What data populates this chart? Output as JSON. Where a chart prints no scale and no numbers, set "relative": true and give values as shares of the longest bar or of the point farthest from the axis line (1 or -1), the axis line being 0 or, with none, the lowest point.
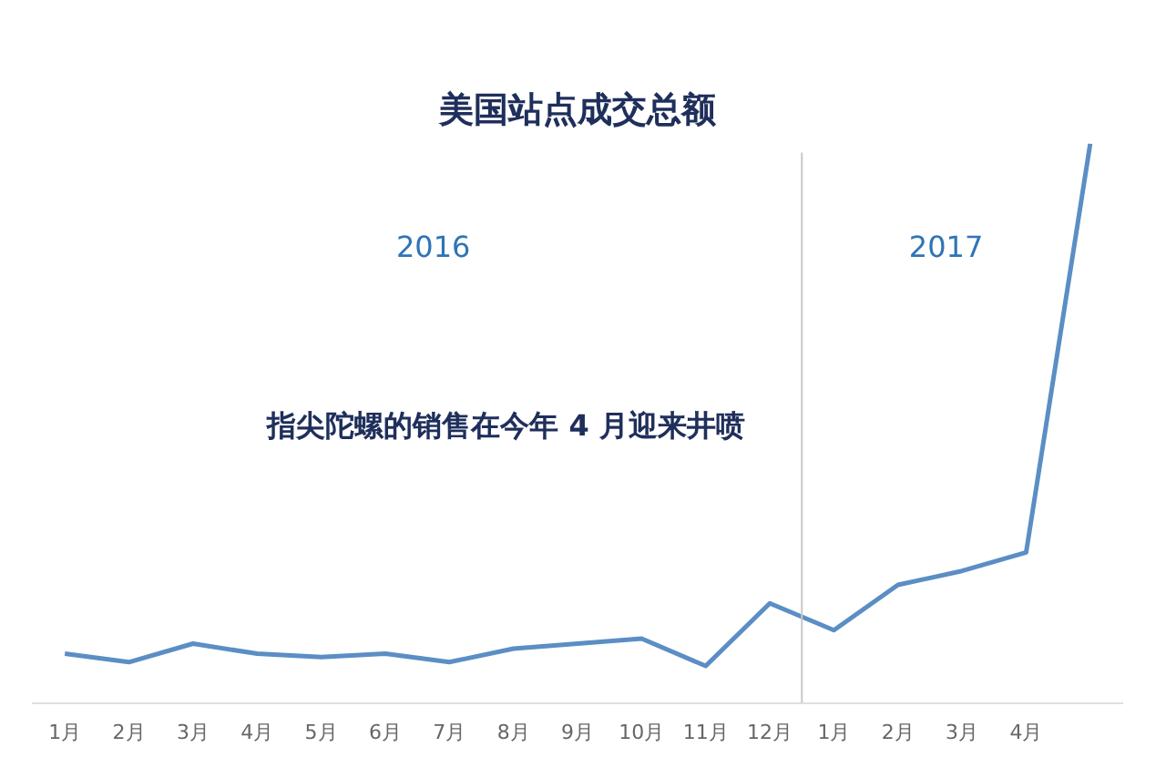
{
  "chart_data": {
    "type": "line",
    "title": "美国站点成交总额",
    "relative": true,
    "categories": [
      "1月",
      "2月",
      "3月",
      "4月",
      "5月",
      "6月",
      "7月",
      "8月",
      "9月",
      "10月",
      "11月",
      "12月",
      "1月",
      "2月",
      "3月",
      "4月",
      null
    ],
    "series": [
      {
        "color": "#5b8ec4",
        "values": [
          0.088,
          0.073,
          0.106,
          0.088,
          0.082,
          0.088,
          0.073,
          0.097,
          0.106,
          0.115,
          0.066,
          0.178,
          0.13,
          0.211,
          0.236,
          0.269,
          1
        ]
      }
    ],
    "annotations": [
      "2016",
      "2017",
      "指尖陀螺的销售在今年 4 月迎来井喷"
    ],
    "grid": false,
    "legend": false,
    "marker": "none",
    "line_style": "solid"
  }
}
